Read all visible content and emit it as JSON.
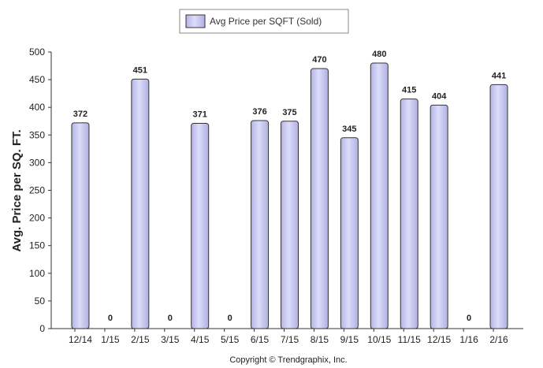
{
  "chart_data": {
    "type": "bar",
    "categories": [
      "12/14",
      "1/15",
      "2/15",
      "3/15",
      "4/15",
      "5/15",
      "6/15",
      "7/15",
      "8/15",
      "9/15",
      "10/15",
      "11/15",
      "12/15",
      "1/16",
      "2/16"
    ],
    "series": [
      {
        "name": "Avg Price per SQFT (Sold)",
        "values": [
          372,
          0,
          451,
          0,
          371,
          0,
          376,
          375,
          470,
          345,
          480,
          415,
          404,
          0,
          441
        ],
        "color": "#c8c8f0"
      }
    ],
    "data_labels": [
      "372",
      "0",
      "451",
      "0",
      "371",
      "0",
      "376",
      "375",
      "470",
      "345",
      "480",
      "415",
      "404",
      "0",
      "441"
    ],
    "ylabel": "Avg. Price per SQ. FT.",
    "ylim": [
      0,
      500
    ],
    "yticks": [
      "0",
      "50",
      "100",
      "150",
      "200",
      "250",
      "300",
      "350",
      "400",
      "450",
      "500"
    ],
    "grid": false,
    "legend_position": "top-center"
  },
  "footer": {
    "copyright": "Copyright © Trendgraphix, Inc."
  }
}
